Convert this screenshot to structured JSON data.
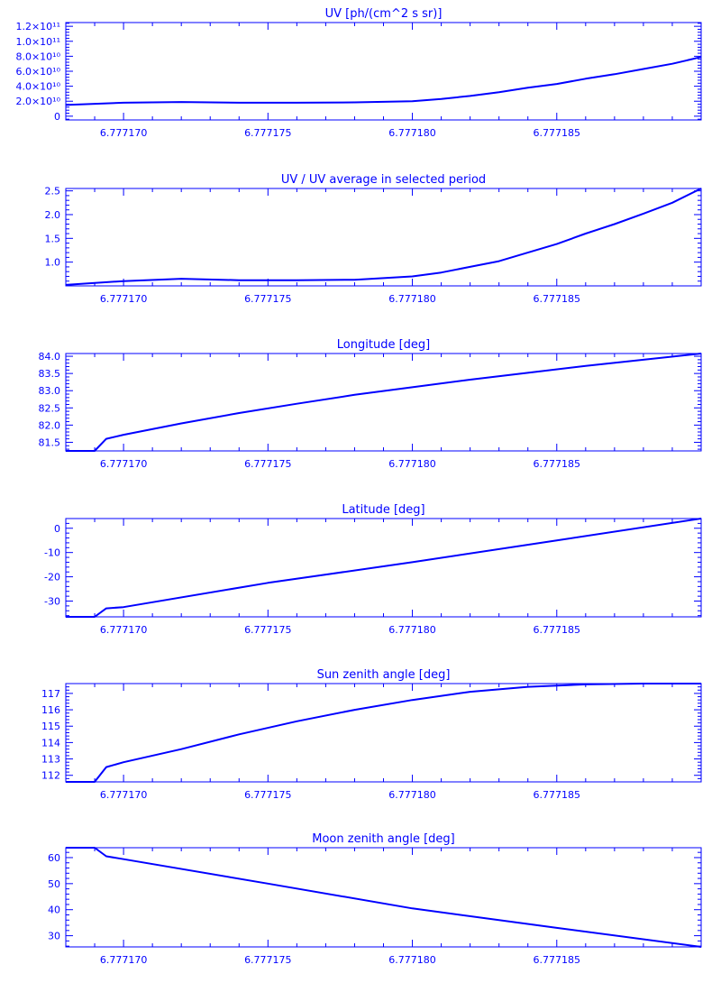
{
  "colors": {
    "line": "#0000ff",
    "background": "#ffffff"
  },
  "chart_data": [
    {
      "type": "line",
      "title": "UV [ph/(cm^2 s sr)]",
      "y_tick_labels": [
        {
          "value": 0,
          "label": "0"
        },
        {
          "value": 20000000000.0,
          "label": "2.0×10¹⁰"
        },
        {
          "value": 40000000000.0,
          "label": "4.0×10¹⁰"
        },
        {
          "value": 60000000000.0,
          "label": "6.0×10¹⁰"
        },
        {
          "value": 80000000000.0,
          "label": "8.0×10¹⁰"
        },
        {
          "value": 100000000000.0,
          "label": "1.0×10¹¹"
        },
        {
          "value": 120000000000.0,
          "label": "1.2×10¹¹"
        }
      ],
      "x_tick_labels": [
        "6.777170",
        "6.777175",
        "6.777180",
        "6.777185"
      ],
      "x_ticks": [
        6.77717,
        6.777175,
        6.77718,
        6.777185
      ],
      "xlim": [
        6.777168,
        6.77719
      ],
      "ylim": [
        -5000000000.0,
        125000000000.0
      ],
      "x": [
        6.777168,
        6.77717,
        6.777172,
        6.777174,
        6.777176,
        6.777178,
        6.77718,
        6.777181,
        6.777182,
        6.777183,
        6.777184,
        6.777185,
        6.777186,
        6.777187,
        6.777188,
        6.777189,
        6.77719
      ],
      "y": [
        15000000000.0,
        18000000000.0,
        19000000000.0,
        18000000000.0,
        18000000000.0,
        18500000000.0,
        20000000000.0,
        23000000000.0,
        27000000000.0,
        32000000000.0,
        38000000000.0,
        43000000000.0,
        50000000000.0,
        56000000000.0,
        63000000000.0,
        70000000000.0,
        79000000000.0
      ]
    },
    {
      "type": "line",
      "title": "UV / UV average in selected period",
      "y_tick_labels": [
        {
          "value": 1.0,
          "label": "1.0"
        },
        {
          "value": 1.5,
          "label": "1.5"
        },
        {
          "value": 2.0,
          "label": "2.0"
        },
        {
          "value": 2.5,
          "label": "2.5"
        }
      ],
      "x_tick_labels": [
        "6.777170",
        "6.777175",
        "6.777180",
        "6.777185"
      ],
      "x_ticks": [
        6.77717,
        6.777175,
        6.77718,
        6.777185
      ],
      "xlim": [
        6.777168,
        6.77719
      ],
      "ylim": [
        0.5,
        2.55
      ],
      "x": [
        6.777168,
        6.77717,
        6.777172,
        6.777174,
        6.777176,
        6.777178,
        6.77718,
        6.777181,
        6.777182,
        6.777183,
        6.777184,
        6.777185,
        6.777186,
        6.777187,
        6.777188,
        6.777189,
        6.77719
      ],
      "y": [
        0.52,
        0.6,
        0.65,
        0.62,
        0.62,
        0.63,
        0.7,
        0.78,
        0.9,
        1.02,
        1.2,
        1.38,
        1.6,
        1.8,
        2.02,
        2.25,
        2.55
      ]
    },
    {
      "type": "line",
      "title": "Longitude [deg]",
      "y_tick_labels": [
        {
          "value": 81.5,
          "label": "81.5"
        },
        {
          "value": 82.0,
          "label": "82.0"
        },
        {
          "value": 82.5,
          "label": "82.5"
        },
        {
          "value": 83.0,
          "label": "83.0"
        },
        {
          "value": 83.5,
          "label": "83.5"
        },
        {
          "value": 84.0,
          "label": "84.0"
        }
      ],
      "x_tick_labels": [
        "6.777170",
        "6.777175",
        "6.777180",
        "6.777185"
      ],
      "x_ticks": [
        6.77717,
        6.777175,
        6.77718,
        6.777185
      ],
      "xlim": [
        6.777168,
        6.77719
      ],
      "ylim": [
        81.25,
        84.08
      ],
      "x": [
        6.777168,
        6.777169,
        6.7771694,
        6.77717,
        6.777172,
        6.777174,
        6.777176,
        6.777178,
        6.77718,
        6.777182,
        6.777184,
        6.777186,
        6.777188,
        6.77719
      ],
      "y": [
        81.25,
        81.25,
        81.6,
        81.72,
        82.05,
        82.35,
        82.62,
        82.88,
        83.1,
        83.32,
        83.52,
        83.72,
        83.9,
        84.08
      ]
    },
    {
      "type": "line",
      "title": "Latitude [deg]",
      "y_tick_labels": [
        {
          "value": -30,
          "label": "-30"
        },
        {
          "value": -20,
          "label": "-20"
        },
        {
          "value": -10,
          "label": "-10"
        },
        {
          "value": 0,
          "label": "0"
        }
      ],
      "x_tick_labels": [
        "6.777170",
        "6.777175",
        "6.777180",
        "6.777185"
      ],
      "x_ticks": [
        6.77717,
        6.777175,
        6.77718,
        6.777185
      ],
      "xlim": [
        6.777168,
        6.77719
      ],
      "ylim": [
        -36.5,
        4.0
      ],
      "x": [
        6.777168,
        6.777169,
        6.7771694,
        6.77717,
        6.777175,
        6.77718,
        6.777185,
        6.77719
      ],
      "y": [
        -36.5,
        -36.5,
        -33.0,
        -32.5,
        -22.5,
        -14.0,
        -5.0,
        4.0
      ]
    },
    {
      "type": "line",
      "title": "Sun zenith angle [deg]",
      "y_tick_labels": [
        {
          "value": 112,
          "label": "112"
        },
        {
          "value": 113,
          "label": "113"
        },
        {
          "value": 114,
          "label": "114"
        },
        {
          "value": 115,
          "label": "115"
        },
        {
          "value": 116,
          "label": "116"
        },
        {
          "value": 117,
          "label": "117"
        }
      ],
      "x_tick_labels": [
        "6.777170",
        "6.777175",
        "6.777180",
        "6.777185"
      ],
      "x_ticks": [
        6.77717,
        6.777175,
        6.77718,
        6.777185
      ],
      "xlim": [
        6.777168,
        6.77719
      ],
      "ylim": [
        111.6,
        117.6
      ],
      "x": [
        6.777168,
        6.777169,
        6.7771694,
        6.77717,
        6.777172,
        6.777174,
        6.777176,
        6.777178,
        6.77718,
        6.777182,
        6.777184,
        6.777186,
        6.777188,
        6.77719
      ],
      "y": [
        111.6,
        111.6,
        112.5,
        112.8,
        113.6,
        114.5,
        115.3,
        116.0,
        116.6,
        117.1,
        117.4,
        117.55,
        117.6,
        117.6
      ]
    },
    {
      "type": "line",
      "title": "Moon zenith angle [deg]",
      "y_tick_labels": [
        {
          "value": 30,
          "label": "30"
        },
        {
          "value": 40,
          "label": "40"
        },
        {
          "value": 50,
          "label": "50"
        },
        {
          "value": 60,
          "label": "60"
        }
      ],
      "x_tick_labels": [
        "6.777170",
        "6.777175",
        "6.777180",
        "6.777185"
      ],
      "x_ticks": [
        6.77717,
        6.777175,
        6.77718,
        6.777185
      ],
      "xlim": [
        6.777168,
        6.77719
      ],
      "ylim": [
        25.7,
        63.8
      ],
      "x": [
        6.777168,
        6.777169,
        6.7771694,
        6.77717,
        6.777175,
        6.77718,
        6.777185,
        6.77719
      ],
      "y": [
        63.8,
        63.8,
        60.5,
        59.4,
        50.0,
        40.5,
        33.0,
        25.7
      ]
    }
  ]
}
